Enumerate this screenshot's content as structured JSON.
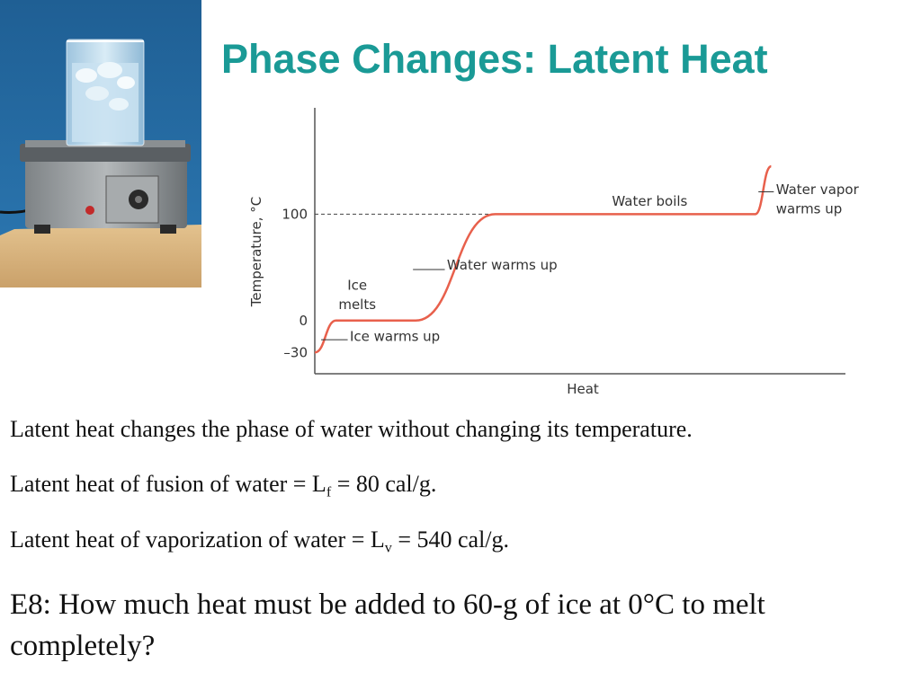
{
  "slide": {
    "title": "Phase Changes: Latent Heat",
    "lines": {
      "line1": "Latent heat changes the phase of water without changing its temperature.",
      "line2_pre": "Latent heat of fusion of water = L",
      "line2_sub": "f",
      "line2_post": " = 80 cal/g.",
      "line3_pre": "Latent heat of vaporization of water = L",
      "line3_sub": "v",
      "line3_post": " = 540 cal/g.",
      "question": "E8: How much heat must be added to 60-g of ice at 0°C to melt completely?"
    }
  },
  "photo": {
    "subject": "beaker of ice water on a hot plate"
  },
  "colors": {
    "title": "#1a9a96",
    "curve": "#e8604c",
    "axis": "#555555"
  },
  "chart_data": {
    "type": "line",
    "title": "",
    "xlabel": "Heat",
    "ylabel": "Temperature, °C",
    "yticks": [
      "100",
      "0",
      "–30"
    ],
    "ytick_values": [
      100,
      0,
      -30
    ],
    "ylim": [
      -50,
      200
    ],
    "xlim": [
      0,
      100
    ],
    "grid": false,
    "reference_line": {
      "y": 100,
      "style": "dashed"
    },
    "series": [
      {
        "x": [
          0,
          4,
          12,
          19,
          34,
          80,
          83,
          86
        ],
        "y": [
          -30,
          0,
          0,
          0,
          100,
          100,
          100,
          145
        ]
      }
    ],
    "annotations": [
      {
        "text": "Ice warms up",
        "x": 2,
        "y": -15
      },
      {
        "text": "Ice",
        "x": 8,
        "y": 33
      },
      {
        "text": "melts",
        "x": 8,
        "y": 15
      },
      {
        "text": "Water warms up",
        "x": 26,
        "y": 52
      },
      {
        "text": "Water boils",
        "x": 56,
        "y": 112
      },
      {
        "text": "Water vapor",
        "x": 85,
        "y": 123
      },
      {
        "text": "warms up",
        "x": 85,
        "y": 105
      }
    ]
  }
}
